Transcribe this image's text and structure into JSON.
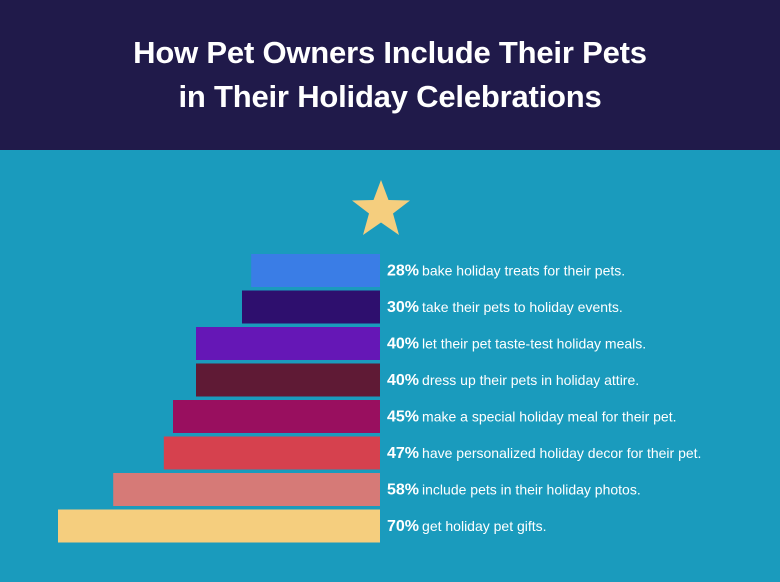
{
  "header": {
    "title_line1": "How Pet Owners Include Their Pets",
    "title_line2": "in Their Holiday Celebrations",
    "background": "#201a4a"
  },
  "star_icon": "star-icon",
  "colors": {
    "background": "#1a9bbd",
    "star": "#f5ce7e"
  },
  "chart_data": {
    "type": "bar",
    "orientation": "horizontal",
    "title": "How Pet Owners Include Their Pets in Their Holiday Celebrations",
    "categories": [
      "bake holiday treats for their pets.",
      "take their pets to holiday events.",
      "let their pet taste-test holiday meals.",
      "dress up their pets in holiday attire.",
      "make a special holiday meal for their pet.",
      "have personalized holiday decor for their pet.",
      "include pets in their holiday photos.",
      "get holiday pet gifts."
    ],
    "values": [
      28,
      30,
      40,
      40,
      45,
      47,
      58,
      70
    ],
    "value_labels": [
      "28%",
      "30%",
      "40%",
      "40%",
      "45%",
      "47%",
      "58%",
      "70%"
    ],
    "bar_colors": [
      "#3a7de6",
      "#2e0f6e",
      "#6517b6",
      "#5f1a35",
      "#990f5f",
      "#d6414e",
      "#d67a77",
      "#f5ce7e"
    ],
    "unit": "%",
    "grid": false,
    "legend": "none"
  }
}
